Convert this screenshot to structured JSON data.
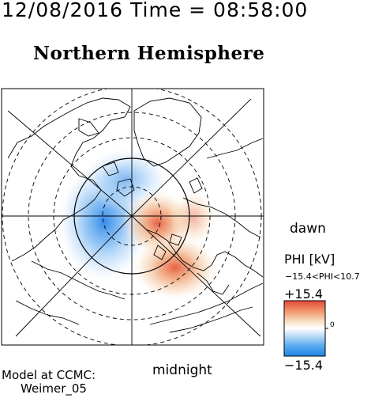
{
  "header": {
    "timestamp": "12/08/2016 Time = 08:58:00",
    "title": "Northern Hemisphere"
  },
  "map": {
    "projection": "polar",
    "orientation_labels": {
      "right": "dawn",
      "bottom": "midnight"
    },
    "grid": "dashed latitude circles",
    "continents": "North America, Greenland, Eurasia coastlines in black"
  },
  "colorbar": {
    "title": "PHI [kV]",
    "range_text": "−15.4<PHI<10.7",
    "max_label": "+15.4",
    "min_label": "−15.4",
    "zero_label": "0",
    "colors": {
      "positive": "#e94b3c",
      "mid": "#ffffff",
      "negative": "#1e7fe6"
    }
  },
  "potential_cells": [
    {
      "sign": "negative",
      "peak_kv": -15.4,
      "region": "dusk-side (left)"
    },
    {
      "sign": "positive",
      "peak_kv": 10.7,
      "region": "dawn-side (right-center)"
    }
  ],
  "footer": {
    "model_line1": "Model at CCMC:",
    "model_line2": "Weimer_05"
  }
}
